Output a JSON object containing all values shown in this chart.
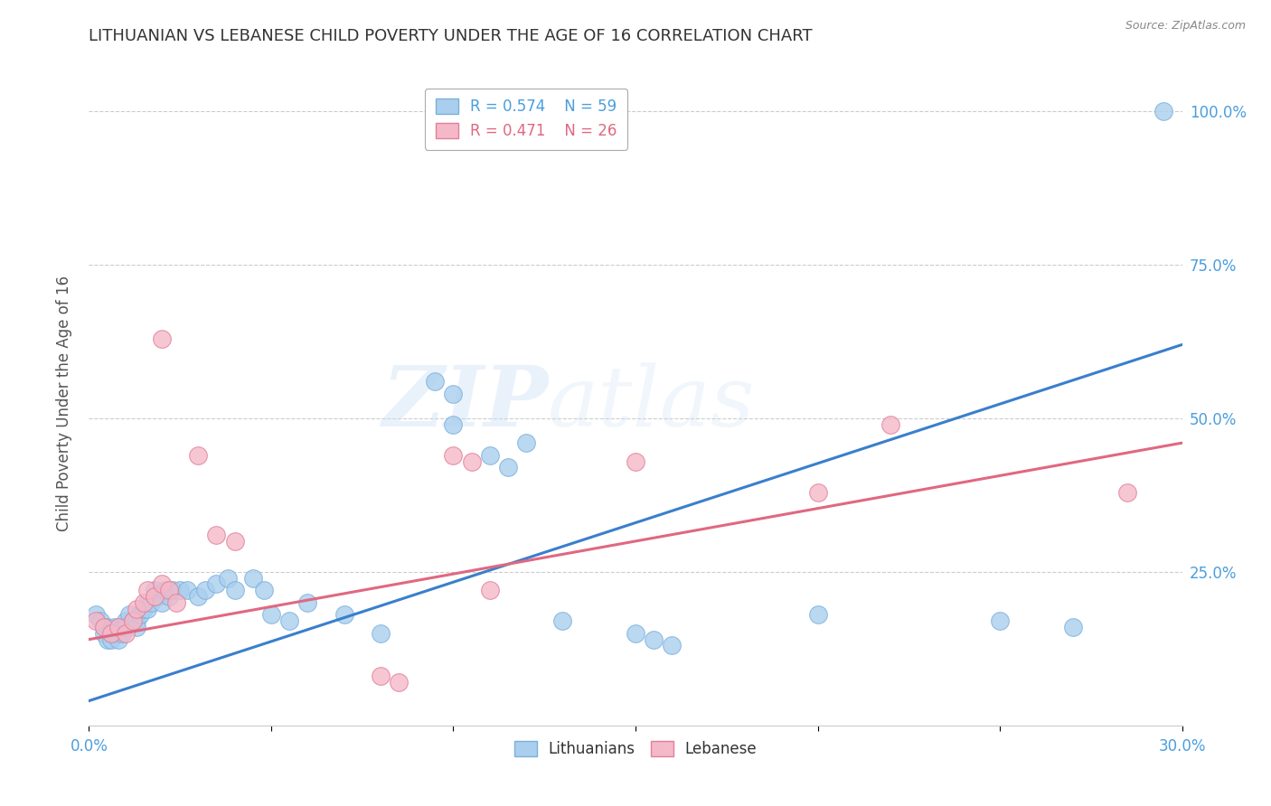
{
  "title": "LITHUANIAN VS LEBANESE CHILD POVERTY UNDER THE AGE OF 16 CORRELATION CHART",
  "source": "Source: ZipAtlas.com",
  "ylabel": "Child Poverty Under the Age of 16",
  "title_color": "#333333",
  "source_color": "#888888",
  "ylabel_color": "#555555",
  "background_color": "#ffffff",
  "grid_color": "#cccccc",
  "xlim": [
    0.0,
    0.3
  ],
  "ylim": [
    0.0,
    1.05
  ],
  "xticks": [
    0.0,
    0.05,
    0.1,
    0.15,
    0.2,
    0.25,
    0.3
  ],
  "yticks": [
    0.0,
    0.25,
    0.5,
    0.75,
    1.0
  ],
  "ytick_labels": [
    "",
    "25.0%",
    "50.0%",
    "75.0%",
    "100.0%"
  ],
  "xtick_labels": [
    "0.0%",
    "",
    "",
    "",
    "",
    "",
    "30.0%"
  ],
  "right_ytick_labels": [
    "",
    "25.0%",
    "50.0%",
    "75.0%",
    "100.0%"
  ],
  "ax_color": "#4a9ede",
  "lit_color": "#aacfee",
  "lit_edge_color": "#7ab0dc",
  "leb_color": "#f5b8c8",
  "leb_edge_color": "#e08098",
  "lit_line_color": "#3a7fcc",
  "leb_line_color": "#e06880",
  "legend_lit_R": "0.574",
  "legend_lit_N": "59",
  "legend_leb_R": "0.471",
  "legend_leb_N": "26",
  "lit_scatter": [
    [
      0.002,
      0.18
    ],
    [
      0.003,
      0.17
    ],
    [
      0.004,
      0.16
    ],
    [
      0.004,
      0.15
    ],
    [
      0.005,
      0.16
    ],
    [
      0.005,
      0.14
    ],
    [
      0.006,
      0.15
    ],
    [
      0.006,
      0.14
    ],
    [
      0.007,
      0.16
    ],
    [
      0.007,
      0.15
    ],
    [
      0.008,
      0.15
    ],
    [
      0.008,
      0.14
    ],
    [
      0.009,
      0.16
    ],
    [
      0.009,
      0.15
    ],
    [
      0.01,
      0.17
    ],
    [
      0.01,
      0.16
    ],
    [
      0.011,
      0.18
    ],
    [
      0.012,
      0.17
    ],
    [
      0.013,
      0.17
    ],
    [
      0.013,
      0.16
    ],
    [
      0.014,
      0.18
    ],
    [
      0.015,
      0.19
    ],
    [
      0.016,
      0.2
    ],
    [
      0.016,
      0.19
    ],
    [
      0.017,
      0.2
    ],
    [
      0.018,
      0.22
    ],
    [
      0.019,
      0.21
    ],
    [
      0.02,
      0.2
    ],
    [
      0.021,
      0.22
    ],
    [
      0.022,
      0.21
    ],
    [
      0.023,
      0.22
    ],
    [
      0.025,
      0.22
    ],
    [
      0.027,
      0.22
    ],
    [
      0.03,
      0.21
    ],
    [
      0.032,
      0.22
    ],
    [
      0.035,
      0.23
    ],
    [
      0.038,
      0.24
    ],
    [
      0.04,
      0.22
    ],
    [
      0.045,
      0.24
    ],
    [
      0.048,
      0.22
    ],
    [
      0.05,
      0.18
    ],
    [
      0.055,
      0.17
    ],
    [
      0.06,
      0.2
    ],
    [
      0.07,
      0.18
    ],
    [
      0.08,
      0.15
    ],
    [
      0.095,
      0.56
    ],
    [
      0.1,
      0.54
    ],
    [
      0.1,
      0.49
    ],
    [
      0.11,
      0.44
    ],
    [
      0.115,
      0.42
    ],
    [
      0.12,
      0.46
    ],
    [
      0.13,
      0.17
    ],
    [
      0.15,
      0.15
    ],
    [
      0.155,
      0.14
    ],
    [
      0.16,
      0.13
    ],
    [
      0.2,
      0.18
    ],
    [
      0.25,
      0.17
    ],
    [
      0.27,
      0.16
    ],
    [
      0.295,
      1.0
    ]
  ],
  "leb_scatter": [
    [
      0.002,
      0.17
    ],
    [
      0.004,
      0.16
    ],
    [
      0.006,
      0.15
    ],
    [
      0.008,
      0.16
    ],
    [
      0.01,
      0.15
    ],
    [
      0.012,
      0.17
    ],
    [
      0.013,
      0.19
    ],
    [
      0.015,
      0.2
    ],
    [
      0.016,
      0.22
    ],
    [
      0.018,
      0.21
    ],
    [
      0.02,
      0.23
    ],
    [
      0.022,
      0.22
    ],
    [
      0.024,
      0.2
    ],
    [
      0.02,
      0.63
    ],
    [
      0.03,
      0.44
    ],
    [
      0.035,
      0.31
    ],
    [
      0.04,
      0.3
    ],
    [
      0.08,
      0.08
    ],
    [
      0.085,
      0.07
    ],
    [
      0.1,
      0.44
    ],
    [
      0.105,
      0.43
    ],
    [
      0.11,
      0.22
    ],
    [
      0.15,
      0.43
    ],
    [
      0.2,
      0.38
    ],
    [
      0.22,
      0.49
    ],
    [
      0.285,
      0.38
    ]
  ],
  "lit_line_x": [
    0.0,
    0.3
  ],
  "lit_line_y": [
    0.04,
    0.62
  ],
  "leb_line_x": [
    0.0,
    0.3
  ],
  "leb_line_y": [
    0.14,
    0.46
  ],
  "watermark_zip": "ZIP",
  "watermark_atlas": "atlas",
  "marker_size": 200
}
